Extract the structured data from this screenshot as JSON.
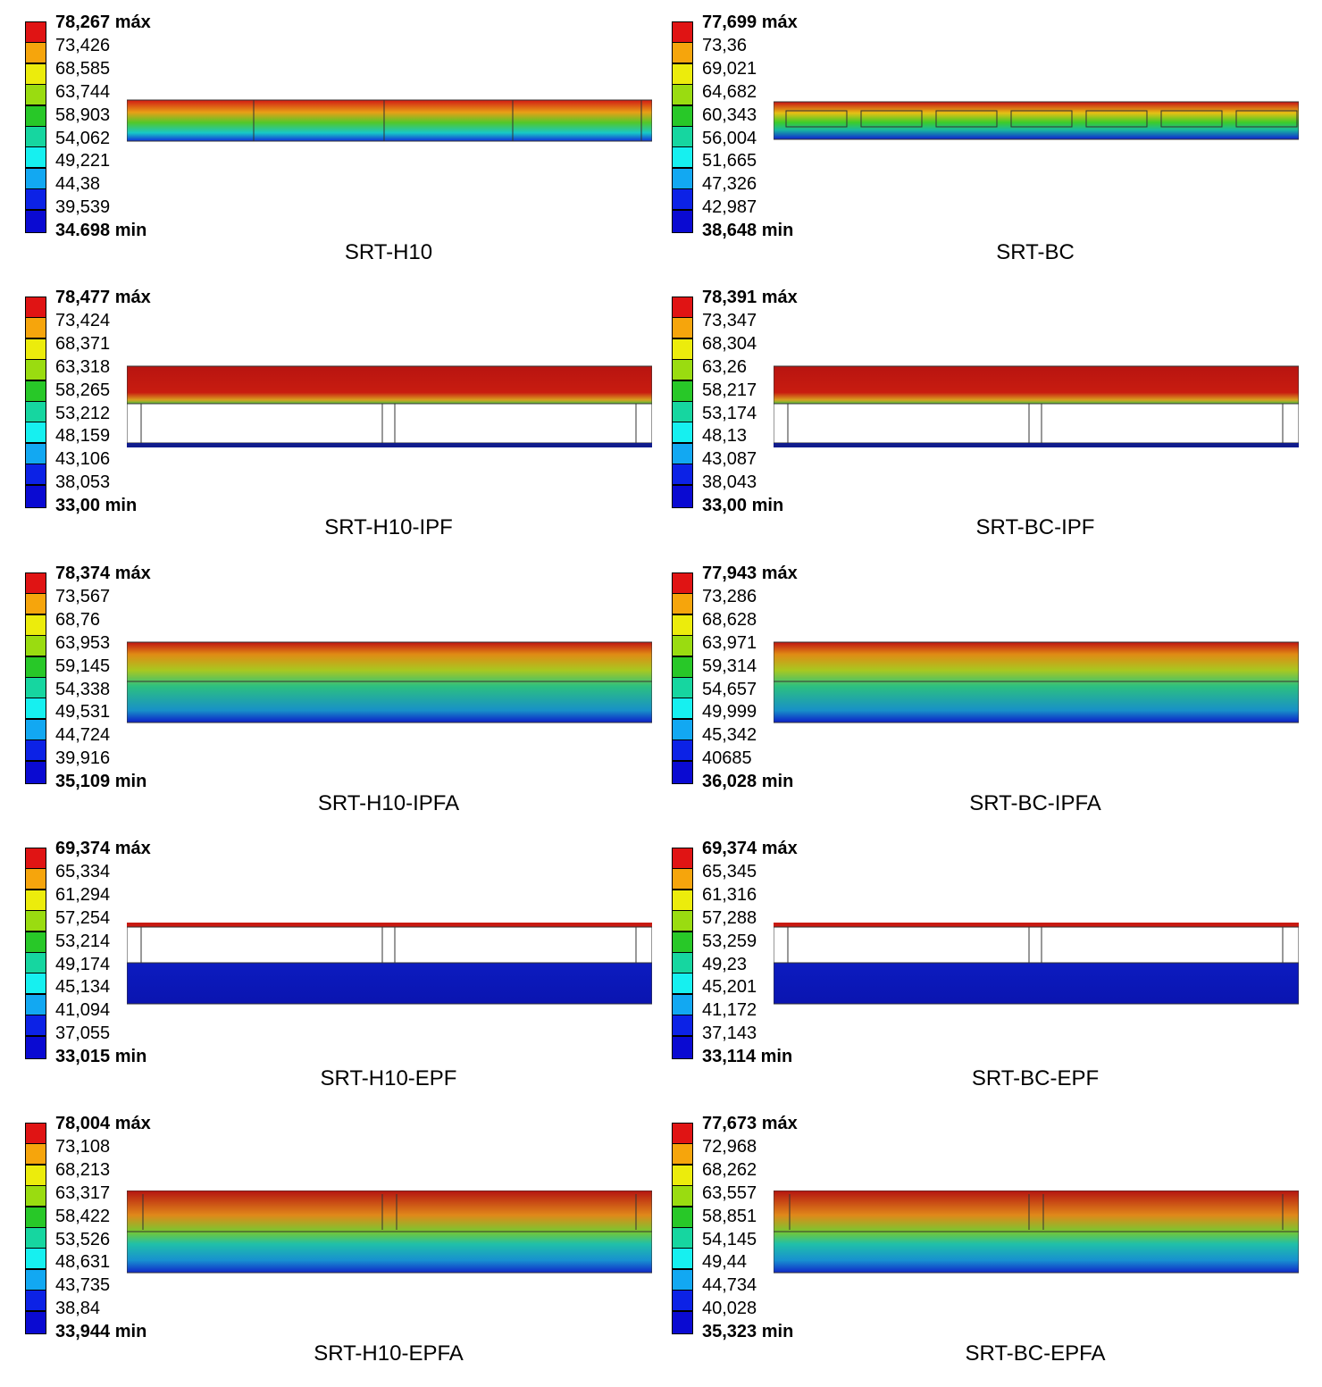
{
  "colors": [
    "#e01414",
    "#f6a50c",
    "#ecec0c",
    "#9adc10",
    "#28c828",
    "#16d6a0",
    "#16f0f0",
    "#12a8f2",
    "#0c22e6",
    "#0a0ad2"
  ],
  "panels": [
    {
      "title": "SRT-H10",
      "labels": [
        "78,267 máx",
        "73,426",
        "68,585",
        "63,744",
        "58,903",
        "54,062",
        "49,221",
        "44,38",
        "39,539",
        "34.698 min"
      ],
      "layout": "solid",
      "fill": "h10"
    },
    {
      "title": "SRT-BC",
      "labels": [
        "77,699 máx",
        "73,36",
        "69,021",
        "64,682",
        "60,343",
        "56,004",
        "51,665",
        "47,326",
        "42,987",
        "38,648 min"
      ],
      "layout": "solid",
      "fill": "bc"
    },
    {
      "title": "SRT-H10-IPF",
      "labels": [
        "78,477 máx",
        "73,424",
        "68,371",
        "63,318",
        "58,265",
        "53,212",
        "48,159",
        "43,106",
        "38,053",
        "33,00 min"
      ],
      "layout": "ipf",
      "fill": "hot"
    },
    {
      "title": "SRT-BC-IPF",
      "labels": [
        "78,391 máx",
        "73,347",
        "68,304",
        "63,26",
        "58,217",
        "53,174",
        "48,13",
        "43,087",
        "38,043",
        "33,00 min"
      ],
      "layout": "ipf",
      "fill": "hot"
    },
    {
      "title": "SRT-H10-IPFA",
      "labels": [
        "78,374 máx",
        "73,567",
        "68,76",
        "63,953",
        "59,145",
        "54,338",
        "49,531",
        "44,724",
        "39,916",
        "35,109 min"
      ],
      "layout": "ipfa",
      "fill": "grad"
    },
    {
      "title": "SRT-BC-IPFA",
      "labels": [
        "77,943 máx",
        "73,286",
        "68,628",
        "63,971",
        "59,314",
        "54,657",
        "49,999",
        "45,342",
        "40685",
        "36,028 min"
      ],
      "layout": "ipfa",
      "fill": "grad"
    },
    {
      "title": "SRT-H10-EPF",
      "labels": [
        "69,374 máx",
        "65,334",
        "61,294",
        "57,254",
        "53,214",
        "49,174",
        "45,134",
        "41,094",
        "37,055",
        "33,015 min"
      ],
      "layout": "epf",
      "fill": "cold"
    },
    {
      "title": "SRT-BC-EPF",
      "labels": [
        "69,374 máx",
        "65,345",
        "61,316",
        "57,288",
        "53,259",
        "49,23",
        "45,201",
        "41,172",
        "37,143",
        "33,114 min"
      ],
      "layout": "epf",
      "fill": "cold"
    },
    {
      "title": "SRT-H10-EPFA",
      "labels": [
        "78,004 máx",
        "73,108",
        "68,213",
        "63,317",
        "58,422",
        "53,526",
        "48,631",
        "43,735",
        "38,84",
        "33,944 min"
      ],
      "layout": "epfa",
      "fill": "grad2"
    },
    {
      "title": "SRT-BC-EPFA",
      "labels": [
        "77,673 máx",
        "72,968",
        "68,262",
        "63,557",
        "58,851",
        "54,145",
        "49,44",
        "44,734",
        "40,028",
        "35,323 min"
      ],
      "layout": "epfa",
      "fill": "grad2"
    }
  ]
}
